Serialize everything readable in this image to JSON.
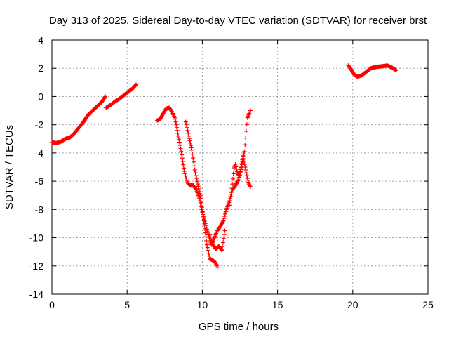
{
  "chart_data": {
    "type": "scatter",
    "title": "Day 313 of 2025, Sidereal Day-to-day VTEC variation (SDTVAR) for receiver brst",
    "xlabel": "GPS time / hours",
    "ylabel": "SDTVAR / TECUs",
    "xlim": [
      0,
      25
    ],
    "ylim": [
      -14,
      4
    ],
    "xticks": [
      0,
      5,
      10,
      15,
      20,
      25
    ],
    "yticks": [
      -14,
      -12,
      -10,
      -8,
      -6,
      -4,
      -2,
      0,
      2,
      4
    ],
    "grid": true,
    "marker": "+",
    "color": "#ff0000",
    "series": [
      {
        "name": "SDTVAR",
        "segments": [
          [
            [
              0.0,
              -3.25
            ],
            [
              0.3,
              -3.3
            ],
            [
              0.6,
              -3.2
            ],
            [
              0.9,
              -3.0
            ],
            [
              1.2,
              -2.9
            ],
            [
              1.5,
              -2.6
            ],
            [
              1.8,
              -2.2
            ],
            [
              2.1,
              -1.8
            ],
            [
              2.4,
              -1.3
            ],
            [
              2.7,
              -1.0
            ],
            [
              3.0,
              -0.7
            ],
            [
              3.3,
              -0.4
            ],
            [
              3.55,
              0.0
            ]
          ],
          [
            [
              3.6,
              -0.8
            ],
            [
              3.9,
              -0.6
            ],
            [
              4.2,
              -0.35
            ],
            [
              4.5,
              -0.15
            ],
            [
              4.8,
              0.1
            ],
            [
              5.1,
              0.35
            ],
            [
              5.4,
              0.6
            ],
            [
              5.6,
              0.85
            ]
          ],
          [
            [
              7.0,
              -1.7
            ],
            [
              7.2,
              -1.6
            ],
            [
              7.4,
              -1.2
            ],
            [
              7.6,
              -0.85
            ],
            [
              7.8,
              -0.8
            ],
            [
              8.0,
              -1.1
            ],
            [
              8.2,
              -1.6
            ],
            [
              8.4,
              -2.8
            ],
            [
              8.6,
              -3.9
            ],
            [
              8.8,
              -5.3
            ],
            [
              9.0,
              -6.1
            ],
            [
              9.2,
              -6.3
            ],
            [
              9.4,
              -6.3
            ],
            [
              9.6,
              -6.6
            ],
            [
              9.8,
              -7.2
            ],
            [
              10.0,
              -8.2
            ],
            [
              10.2,
              -9.0
            ],
            [
              10.4,
              -9.8
            ],
            [
              10.6,
              -10.5
            ],
            [
              10.8,
              -10.0
            ],
            [
              11.0,
              -9.5
            ],
            [
              11.2,
              -9.2
            ],
            [
              11.4,
              -8.8
            ],
            [
              11.6,
              -8.0
            ],
            [
              11.8,
              -7.4
            ],
            [
              12.0,
              -6.6
            ],
            [
              12.2,
              -6.3
            ],
            [
              12.4,
              -5.9
            ],
            [
              12.6,
              -5.0
            ],
            [
              12.8,
              -3.9
            ],
            [
              13.0,
              -1.5
            ],
            [
              13.2,
              -1.0
            ]
          ],
          [
            [
              8.9,
              -1.8
            ],
            [
              9.1,
              -2.8
            ],
            [
              9.3,
              -3.8
            ],
            [
              9.5,
              -5.2
            ],
            [
              9.7,
              -6.2
            ],
            [
              9.9,
              -7.2
            ],
            [
              10.1,
              -8.8
            ],
            [
              10.3,
              -10.5
            ],
            [
              10.5,
              -11.5
            ],
            [
              10.7,
              -11.6
            ],
            [
              10.9,
              -11.8
            ],
            [
              11.0,
              -12.1
            ]
          ],
          [
            [
              10.5,
              -9.8
            ],
            [
              10.7,
              -10.5
            ],
            [
              10.9,
              -10.8
            ],
            [
              11.1,
              -10.6
            ],
            [
              11.3,
              -10.9
            ],
            [
              11.5,
              -9.5
            ]
          ],
          [
            [
              11.8,
              -7.7
            ],
            [
              12.0,
              -6.2
            ],
            [
              12.1,
              -5.1
            ],
            [
              12.2,
              -4.8
            ],
            [
              12.35,
              -5.5
            ],
            [
              12.5,
              -5.6
            ],
            [
              12.7,
              -4.2
            ],
            [
              12.85,
              -5.0
            ],
            [
              13.0,
              -5.8
            ],
            [
              13.1,
              -6.2
            ],
            [
              13.2,
              -6.4
            ]
          ],
          [
            [
              19.7,
              2.2
            ],
            [
              19.9,
              1.9
            ],
            [
              20.1,
              1.55
            ],
            [
              20.3,
              1.4
            ],
            [
              20.6,
              1.5
            ],
            [
              20.9,
              1.75
            ],
            [
              21.2,
              2.0
            ],
            [
              21.6,
              2.1
            ],
            [
              22.0,
              2.15
            ],
            [
              22.3,
              2.2
            ],
            [
              22.6,
              2.05
            ],
            [
              22.9,
              1.85
            ]
          ]
        ]
      }
    ]
  }
}
